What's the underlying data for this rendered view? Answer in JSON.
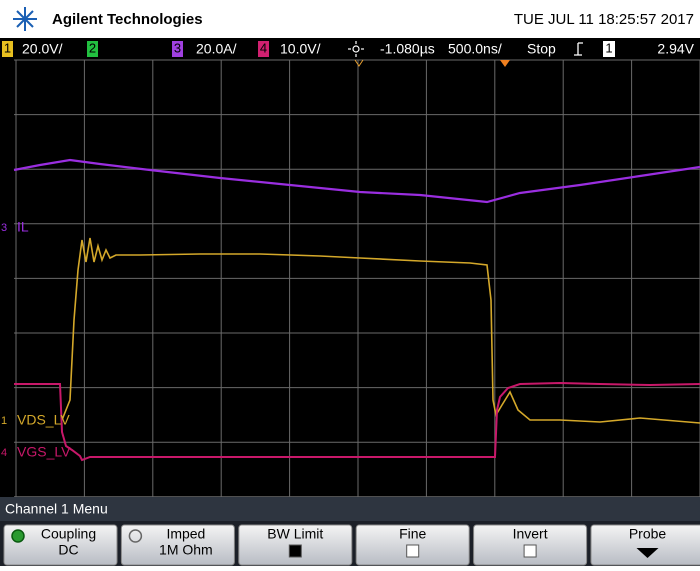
{
  "header": {
    "brand": "Agilent Technologies",
    "datetime": "TUE JUL 11 18:25:57 2017"
  },
  "status": {
    "ch1": "1",
    "ch1_scale": "20.0V/",
    "ch2": "2",
    "ch3": "3",
    "ch3_scale": "20.0A/",
    "ch4": "4",
    "ch4_scale": "10.0V/",
    "delay": "-1.080µs",
    "timebase": "500.0ns/",
    "run_state": "Stop",
    "trigger_source": "1",
    "trigger_level": "2.94V"
  },
  "traces": [
    {
      "channel": "3",
      "label": "IL"
    },
    {
      "channel": "1",
      "label": "VDS_LV"
    },
    {
      "channel": "4",
      "label": "VGS_LV"
    }
  ],
  "menu": {
    "title": "Channel 1 Menu",
    "softkeys": [
      {
        "label": "Coupling",
        "value": "DC"
      },
      {
        "label": "Imped",
        "value": "1M Ohm"
      },
      {
        "label": "BW Limit"
      },
      {
        "label": "Fine"
      },
      {
        "label": "Invert"
      },
      {
        "label": "Probe"
      }
    ]
  }
}
